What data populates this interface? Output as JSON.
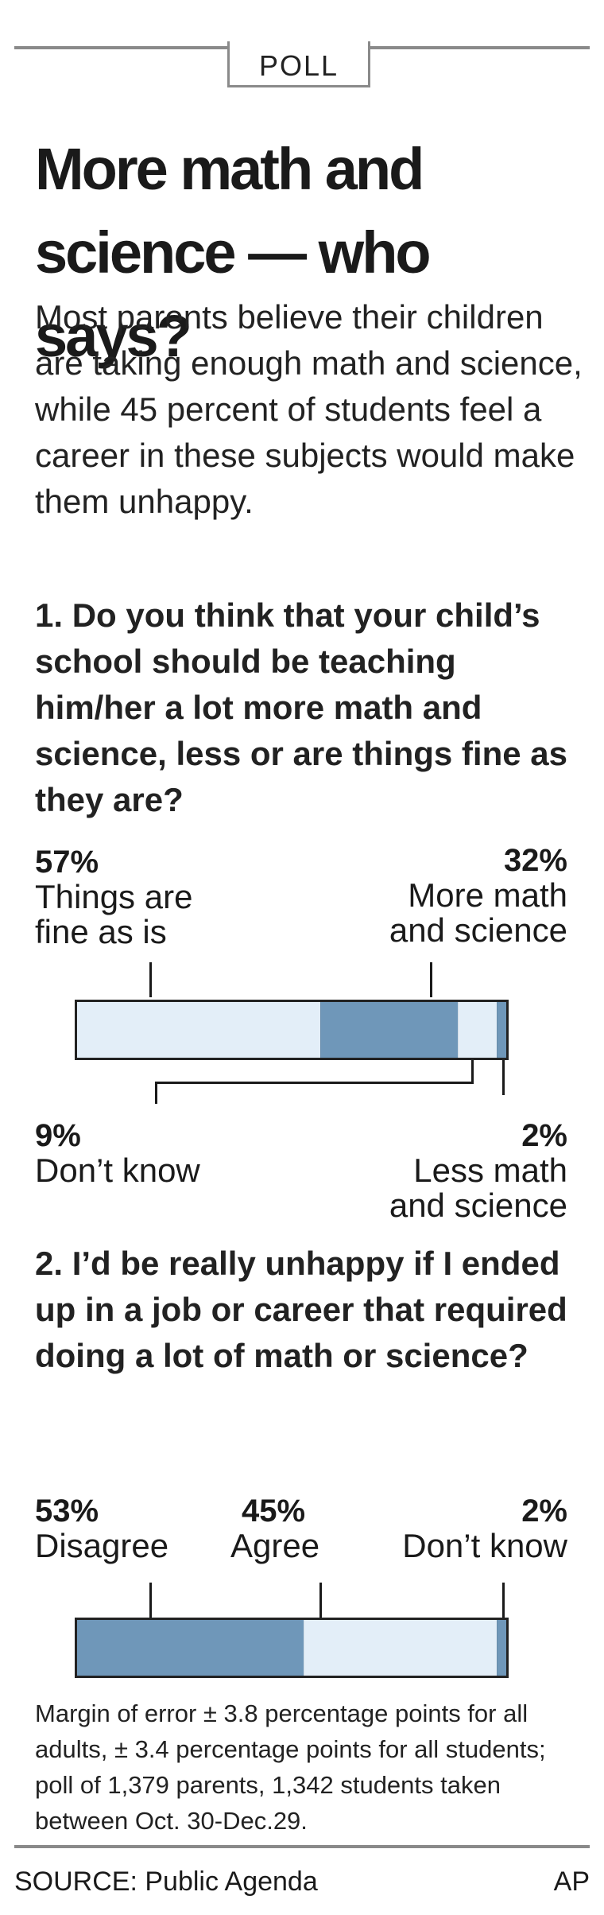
{
  "header": {
    "tab_label": "POLL"
  },
  "headline": {
    "line1": "More math and",
    "line2": "science — who says?"
  },
  "deck": "Most parents believe their children are taking enough math and science, while 45 percent of students feel a career in these subjects would make them unhappy.",
  "q1": {
    "question": "1. Do you think that your child’s school should be teaching him/her a lot more math and science, less or are things fine as they are?",
    "labels": {
      "fine_pct": "57%",
      "fine_label_1": "Things are",
      "fine_label_2": "fine as is",
      "more_pct": "32%",
      "more_label_1": "More math",
      "more_label_2": "and science",
      "dk_pct": "9%",
      "dk_label": "Don’t know",
      "less_pct": "2%",
      "less_label_1": "Less math",
      "less_label_2": "and science"
    }
  },
  "q2": {
    "question": "2. I’d be really unhappy if I ended up in a job or career that required doing a lot of math or science?",
    "labels": {
      "disagree_pct": "53%",
      "disagree_label": "Disagree",
      "agree_pct": "45%",
      "agree_label": "Agree",
      "dk_pct": "2%",
      "dk_label": "Don’t know"
    }
  },
  "footnote": "Margin of error ± 3.8 percentage points for all adults, ± 3.4 percentage points for all students; poll of 1,379 parents, 1,342 students taken between Oct. 30-Dec.29.",
  "footer": {
    "source": "SOURCE: Public Agenda",
    "credit": "AP"
  },
  "colors": {
    "light": "#e3eef8",
    "dark": "#6f97b9",
    "outline": "#222222"
  },
  "chart_data": [
    {
      "type": "bar",
      "orientation": "stacked-horizontal",
      "title": "1. Do you think that your child’s school should be teaching him/her a lot more math and science, less or are things fine as they are?",
      "categories": [
        "Things are fine as is",
        "More math and science",
        "Don’t know",
        "Less math and science"
      ],
      "values": [
        57,
        32,
        9,
        2
      ],
      "unit": "%",
      "segment_colors": [
        "light",
        "dark",
        "light",
        "dark"
      ]
    },
    {
      "type": "bar",
      "orientation": "stacked-horizontal",
      "title": "2. I’d be really unhappy if I ended up in a job or career that required doing a lot of math or science?",
      "categories": [
        "Disagree",
        "Agree",
        "Don’t know"
      ],
      "values": [
        53,
        45,
        2
      ],
      "unit": "%",
      "segment_colors": [
        "dark",
        "light",
        "dark"
      ]
    }
  ]
}
